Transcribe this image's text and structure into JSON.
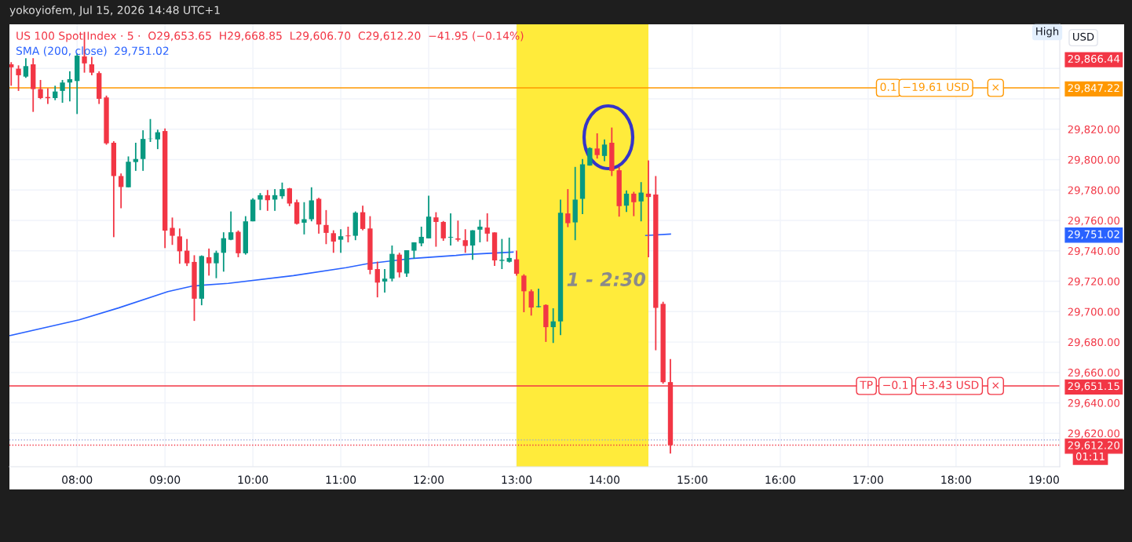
{
  "chart_data": {
    "type": "candlestick",
    "title": "yokoyiofem, Jul 15, 2026 14:48 UTC+1",
    "subtitle": "US 100 Spot Index · 5 ·  O29,653.65  H29,668.85  L29,606.70  C29,612.20  −41.95 (−0.14%)",
    "x": [
      7.25,
      7.3333,
      7.4167,
      7.5,
      7.5833,
      7.6667,
      7.75,
      7.8333,
      7.9167,
      8,
      8.0833,
      8.1667,
      8.25,
      8.3333,
      8.4167,
      8.5,
      8.5833,
      8.6667,
      8.75,
      8.8333,
      8.9167,
      9,
      9.0833,
      9.1667,
      9.25,
      9.3333,
      9.4167,
      9.5,
      9.5833,
      9.6667,
      9.75,
      9.8333,
      9.9167,
      10,
      10.0833,
      10.1667,
      10.25,
      10.3333,
      10.4167,
      10.5,
      10.5833,
      10.6667,
      10.75,
      10.8333,
      10.9167,
      11,
      11.0833,
      11.1667,
      11.25,
      11.3333,
      11.4167,
      11.5,
      11.5833,
      11.6667,
      11.75,
      11.8333,
      11.9167,
      12,
      12.0833,
      12.1667,
      12.25,
      12.3333,
      12.4167,
      12.5,
      12.5833,
      12.6667,
      12.75,
      12.8333,
      12.9167,
      13,
      13.0833,
      13.1667,
      13.25,
      13.3333,
      13.4167,
      13.5,
      13.5833,
      13.6667,
      13.75,
      13.8333,
      13.9167,
      14,
      14.0833,
      14.1667,
      14.25,
      14.3333,
      14.4167,
      14.5,
      14.5833,
      14.6667,
      14.75
    ],
    "ohlc": [
      [
        29862.7,
        29864.1,
        29848.6,
        29860.7
      ],
      [
        29859.8,
        29862.0,
        29845.2,
        29855.5
      ],
      [
        29854.6,
        29866.7,
        29853.8,
        29861.5
      ],
      [
        29862.7,
        29866.7,
        29831.4,
        29846.4
      ],
      [
        29846.4,
        29852.4,
        29839.8,
        29840.5
      ],
      [
        29841.2,
        29846.9,
        29836.6,
        29840.4
      ],
      [
        29840.5,
        29848.6,
        29839.1,
        29844.8
      ],
      [
        29845.2,
        29852.4,
        29837.4,
        29850.7
      ],
      [
        29850.7,
        29858.1,
        29838.3,
        29852.9
      ],
      [
        29851.7,
        29870.0,
        29830.0,
        29868.4
      ],
      [
        29867.9,
        29884.0,
        29857.2,
        29863.3
      ],
      [
        29862.7,
        29867.6,
        29855.5,
        29857.2
      ],
      [
        29856.9,
        29858.1,
        29836.6,
        29840.0
      ],
      [
        29840.9,
        29842.1,
        29809.8,
        29810.7
      ],
      [
        29811.1,
        29812.1,
        29749.0,
        29789.2
      ],
      [
        29789.2,
        29790.9,
        29768.0,
        29782.0
      ],
      [
        29781.8,
        29802.1,
        29781.8,
        29798.6
      ],
      [
        29798.4,
        29811.1,
        29792.6,
        29800.4
      ],
      [
        29800.4,
        29819.3,
        29792.6,
        29813.6
      ],
      [
        29813.6,
        29826.7,
        29811.6,
        29813.8
      ],
      [
        29813.3,
        29819.7,
        29806.9,
        29818.0
      ],
      [
        29818.8,
        29820.5,
        29741.8,
        29753.3
      ],
      [
        29755.1,
        29761.9,
        29743.9,
        29749.9
      ],
      [
        29749.5,
        29754.7,
        29731.5,
        29739.7
      ],
      [
        29740.1,
        29747.8,
        29730.0,
        29731.8
      ],
      [
        29732.7,
        29737.1,
        29693.9,
        29708.5
      ],
      [
        29708.5,
        29737.0,
        29704.2,
        29736.6
      ],
      [
        29735.8,
        29741.5,
        29723.7,
        29731.8
      ],
      [
        29731.8,
        29740.1,
        29722.0,
        29738.7
      ],
      [
        29738.7,
        29752.2,
        29726.3,
        29748.3
      ],
      [
        29747.3,
        29765.9,
        29747.0,
        29752.2
      ],
      [
        29752.5,
        29753.4,
        29735.8,
        29738.4
      ],
      [
        29738.4,
        29762.8,
        29737.5,
        29759.4
      ],
      [
        29759.4,
        29774.6,
        29759.4,
        29773.7
      ],
      [
        29773.7,
        29778.0,
        29766.8,
        29776.6
      ],
      [
        29776.6,
        29780.0,
        29766.3,
        29773.3
      ],
      [
        29773.7,
        29780.6,
        29766.3,
        29776.6
      ],
      [
        29775.9,
        29784.9,
        29774.2,
        29780.6
      ],
      [
        29781.1,
        29781.4,
        29769.4,
        29771.1
      ],
      [
        29772.0,
        29773.7,
        29757.3,
        29757.8
      ],
      [
        29758.5,
        29772.0,
        29750.8,
        29760.8
      ],
      [
        29760.8,
        29781.8,
        29759.4,
        29773.2
      ],
      [
        29774.2,
        29774.9,
        29751.3,
        29757.3
      ],
      [
        29757.0,
        29766.8,
        29744.4,
        29751.8
      ],
      [
        29751.6,
        29753.5,
        29738.7,
        29746.1
      ],
      [
        29747.3,
        29754.2,
        29738.7,
        29749.6
      ],
      [
        29750.1,
        29755.9,
        29745.6,
        29749.6
      ],
      [
        29749.9,
        29765.9,
        29747.0,
        29765.1
      ],
      [
        29765.4,
        29769.7,
        29753.5,
        29754.4
      ],
      [
        29754.7,
        29762.8,
        29724.6,
        29727.5
      ],
      [
        29728.0,
        29732.9,
        29709.4,
        29719.1
      ],
      [
        29719.8,
        29728.0,
        29712.5,
        29721.7
      ],
      [
        29721.7,
        29743.5,
        29719.9,
        29738.0
      ],
      [
        29737.5,
        29738.7,
        29722.5,
        29725.8
      ],
      [
        29725.1,
        29740.4,
        29722.9,
        29740.4
      ],
      [
        29740.1,
        29745.6,
        29734.9,
        29745.6
      ],
      [
        29744.9,
        29755.9,
        29743.0,
        29749.2
      ],
      [
        29748.2,
        29776.3,
        29748.2,
        29762.5
      ],
      [
        29762.0,
        29765.4,
        29742.7,
        29759.0
      ],
      [
        29759.0,
        29759.6,
        29746.6,
        29748.2
      ],
      [
        29748.7,
        29764.6,
        29743.5,
        29749.2
      ],
      [
        29748.2,
        29759.9,
        29746.1,
        29747.3
      ],
      [
        29747.0,
        29754.2,
        29738.7,
        29743.2
      ],
      [
        29743.5,
        29753.5,
        29734.1,
        29753.5
      ],
      [
        29753.9,
        29760.4,
        29745.6,
        29755.9
      ],
      [
        29755.3,
        29764.7,
        29746.1,
        29751.3
      ],
      [
        29752.1,
        29752.1,
        29730.1,
        29733.7
      ],
      [
        29733.4,
        29747.8,
        29728.0,
        29734.1
      ],
      [
        29732.8,
        29748.7,
        29732.3,
        29735.3
      ],
      [
        29734.4,
        29740.1,
        29723.7,
        29724.9
      ],
      [
        29723.7,
        29724.6,
        29699.6,
        29713.4
      ],
      [
        29713.4,
        29714.6,
        29697.4,
        29702.7
      ],
      [
        29703.0,
        29715.1,
        29702.8,
        29703.6
      ],
      [
        29704.4,
        29704.8,
        29680.1,
        29689.8
      ],
      [
        29689.8,
        29702.2,
        29679.4,
        29693.6
      ],
      [
        29693.6,
        29773.7,
        29684.6,
        29765.1
      ],
      [
        29764.6,
        29780.6,
        29755.6,
        29758.2
      ],
      [
        29758.7,
        29795.2,
        29747.0,
        29773.7
      ],
      [
        29774.2,
        29800.4,
        29764.2,
        29796.9
      ],
      [
        29796.1,
        29808.1,
        29796.0,
        29807.6
      ],
      [
        29807.3,
        29817.3,
        29800.7,
        29803.0
      ],
      [
        29802.4,
        29813.3,
        29799.0,
        29809.9
      ],
      [
        29811.1,
        29821.1,
        29789.2,
        29792.6
      ],
      [
        29793.0,
        29795.2,
        29762.5,
        29769.4
      ],
      [
        29769.7,
        29779.7,
        29765.6,
        29777.6
      ],
      [
        29777.6,
        29778.8,
        29762.8,
        29772.0
      ],
      [
        29772.5,
        29785.2,
        29759.4,
        29778.3
      ],
      [
        29777.6,
        29799.5,
        29735.8,
        29775.4
      ],
      [
        29777.1,
        29789.2,
        29674.6,
        29702.5
      ],
      [
        29705.1,
        29706.5,
        29652.6,
        29653.6
      ],
      [
        29653.65,
        29668.85,
        29606.7,
        29612.2
      ]
    ],
    "colors": [
      "#f23645",
      "#f23645",
      "#089981",
      "#f23645",
      "#f23645",
      "#f23645",
      "#089981",
      "#089981",
      "#089981",
      "#089981",
      "#f23645",
      "#f23645",
      "#f23645",
      "#f23645",
      "#f23645",
      "#f23645",
      "#089981",
      "#089981",
      "#089981",
      "#089981",
      "#089981",
      "#f23645",
      "#f23645",
      "#f23645",
      "#f23645",
      "#f23645",
      "#089981",
      "#f23645",
      "#089981",
      "#089981",
      "#089981",
      "#f23645",
      "#089981",
      "#089981",
      "#089981",
      "#f23645",
      "#089981",
      "#089981",
      "#f23645",
      "#f23645",
      "#089981",
      "#089981",
      "#f23645",
      "#f23645",
      "#f23645",
      "#089981",
      "#f23645",
      "#089981",
      "#f23645",
      "#f23645",
      "#f23645",
      "#089981",
      "#089981",
      "#f23645",
      "#089981",
      "#089981",
      "#089981",
      "#089981",
      "#f23645",
      "#f23645",
      "#089981",
      "#f23645",
      "#f23645",
      "#089981",
      "#089981",
      "#f23645",
      "#f23645",
      "#089981",
      "#089981",
      "#f23645",
      "#f23645",
      "#f23645",
      "#089981",
      "#f23645",
      "#089981",
      "#089981",
      "#f23645",
      "#089981",
      "#089981",
      "#089981",
      "#f23645",
      "#089981",
      "#f23645",
      "#f23645",
      "#089981",
      "#f23645",
      "#089981",
      "#f23645",
      "#f23645",
      "#f23645",
      "#f23645"
    ],
    "series": [
      {
        "name": "SMA (200, close)",
        "type": "line",
        "color": "#2962ff",
        "x": [
          7.238,
          8.024,
          8.47,
          9.033,
          9.319,
          9.72,
          10.461,
          11.06,
          11.3,
          11.8,
          12.31,
          12.4,
          12.96,
          13.5,
          14.47,
          14.75
        ],
        "values": [
          29684.3,
          29694.6,
          29702.4,
          29713.2,
          29716.9,
          29718.6,
          29723.7,
          29728.9,
          29731.5,
          29734.9,
          29737.0,
          29737.5,
          29739.2,
          null,
          29750.1,
          29751.02
        ]
      }
    ],
    "xlim": [
      7.23,
      19.18
    ],
    "xticks": [
      {
        "value": 8,
        "label": "08:00"
      },
      {
        "value": 9,
        "label": "09:00"
      },
      {
        "value": 10,
        "label": "10:00"
      },
      {
        "value": 11,
        "label": "11:00"
      },
      {
        "value": 12,
        "label": "12:00"
      },
      {
        "value": 13,
        "label": "13:00"
      },
      {
        "value": 14,
        "label": "14:00"
      },
      {
        "value": 15,
        "label": "15:00"
      },
      {
        "value": 16,
        "label": "16:00"
      },
      {
        "value": 17,
        "label": "17:00"
      },
      {
        "value": 18,
        "label": "18:00"
      },
      {
        "value": 19,
        "label": "19:00"
      }
    ],
    "ylim": [
      29598,
      29889
    ],
    "yticks": [
      {
        "value": 29620,
        "label": "29,620.00"
      },
      {
        "value": 29640,
        "label": "29,640.00"
      },
      {
        "value": 29660,
        "label": "29,660.00"
      },
      {
        "value": 29680,
        "label": "29,680.00"
      },
      {
        "value": 29700,
        "label": "29,700.00"
      },
      {
        "value": 29720,
        "label": "29,720.00"
      },
      {
        "value": 29740,
        "label": "29,740.00"
      },
      {
        "value": 29760,
        "label": "29,760.00"
      },
      {
        "value": 29780,
        "label": "29,780.00"
      },
      {
        "value": 29800,
        "label": "29,800.00"
      },
      {
        "value": 29820,
        "label": "29,820.00"
      },
      {
        "value": 29840,
        "label": null
      },
      {
        "value": 29860,
        "label": null
      }
    ],
    "y2lim": [
      29598,
      29889
    ],
    "y2ticks": [
      {
        "value": 29866.44,
        "label": "29,866.44"
      },
      {
        "value": 29847.22,
        "label": "29,847.22"
      },
      {
        "value": 29751.02,
        "label": "29,751.02"
      },
      {
        "value": 29651.15,
        "label": "29,651.15"
      },
      {
        "value": 29612.2,
        "label": "29,612.20"
      }
    ],
    "ref_lines": [
      {
        "axis": "y",
        "value": 29847.22,
        "color": "#ff9800",
        "line_style": "solid"
      },
      {
        "axis": "y",
        "value": 29651.15,
        "color": "#f23645",
        "line_style": "solid"
      },
      {
        "axis": "y",
        "value": 29615.6,
        "color": "#90a4d8",
        "line_style": "dotted"
      },
      {
        "axis": "y",
        "value": 29612.2,
        "color": "#f23645",
        "line_style": "dotted"
      }
    ],
    "bands": [
      {
        "axis": "x",
        "from": 13.0,
        "to": 14.5,
        "label": "1 - 2:30",
        "color": "#ffeb3b"
      }
    ],
    "annotations": [
      "High",
      "USD",
      "01:11",
      "29,751.02",
      {
        "text": "0.1",
        "x": 17.23,
        "y": 29847.22
      },
      {
        "text": "−19.61 USD",
        "x": 17.77,
        "y": 29847.22
      },
      {
        "text": "×",
        "x": 18.45,
        "y": 29847.22
      },
      {
        "text": "TP",
        "x": 16.98,
        "y": 29651.15
      },
      {
        "text": "−0.1",
        "x": 17.31,
        "y": 29651.15
      },
      {
        "text": "+3.43 USD",
        "x": 17.92,
        "y": 29651.15
      },
      {
        "text": "×",
        "x": 18.45,
        "y": 29651.15
      }
    ],
    "grid": true,
    "legend": "top left"
  }
}
